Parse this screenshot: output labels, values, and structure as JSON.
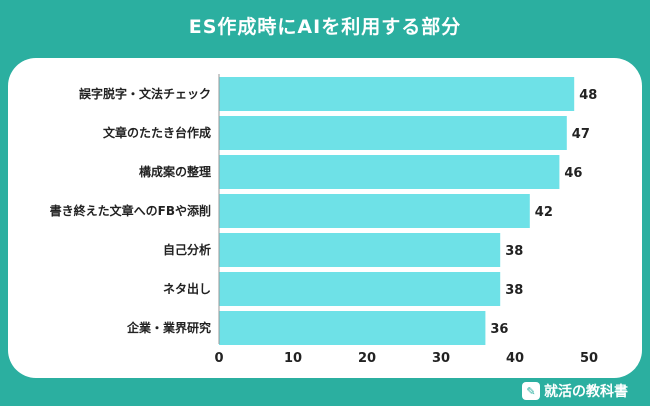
{
  "title": "ES作成時にAIを利用する部分",
  "brand": {
    "name": "就活の教科書",
    "icon": "book-icon"
  },
  "colors": {
    "background": "#2bafa0",
    "bar": "#6ee1e7",
    "panel": "#ffffff"
  },
  "chart_data": {
    "type": "bar",
    "orientation": "horizontal",
    "title": "ES作成時にAIを利用する部分",
    "categories": [
      "誤字脱字・文法チェック",
      "文章のたたき台作成",
      "構成案の整理",
      "書き終えた文章へのFBや添削",
      "自己分析",
      "ネタ出し",
      "企業・業界研究"
    ],
    "values": [
      48,
      47,
      46,
      42,
      38,
      38,
      36
    ],
    "xlim": [
      0,
      50
    ],
    "xticks": [
      0,
      10,
      20,
      30,
      40,
      50
    ],
    "xlabel": "",
    "ylabel": "",
    "grid": false
  }
}
